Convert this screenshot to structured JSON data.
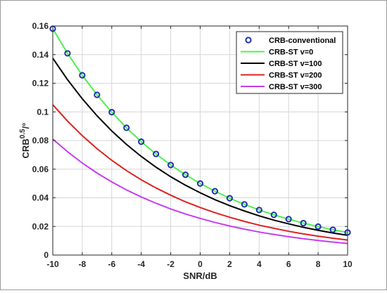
{
  "chart_data": {
    "type": "line",
    "xlabel": "SNR/dB",
    "ylabel_main": "CRB",
    "ylabel_sup": "0.5",
    "ylabel_unit": "/°",
    "xlim": [
      -10,
      10
    ],
    "ylim": [
      0,
      0.16
    ],
    "grid": true,
    "legend_position": "top-right",
    "x_ticks": [
      -10,
      -8,
      -6,
      -4,
      -2,
      0,
      2,
      4,
      6,
      8,
      10
    ],
    "y_ticks": [
      0,
      0.02,
      0.04,
      0.06,
      0.08,
      0.1,
      0.12,
      0.14,
      0.16
    ],
    "x": [
      -10,
      -9,
      -8,
      -7,
      -6,
      -5,
      -4,
      -3,
      -2,
      -1,
      0,
      1,
      2,
      3,
      4,
      5,
      6,
      7,
      8,
      9,
      10
    ],
    "series": [
      {
        "name": "CRB-conventional",
        "style": "markers",
        "color": "#1f2fb4",
        "values": [
          0.1581,
          0.1409,
          0.1256,
          0.1119,
          0.0998,
          0.0889,
          0.0792,
          0.0706,
          0.0629,
          0.0561,
          0.05,
          0.0446,
          0.0397,
          0.0354,
          0.0315,
          0.0281,
          0.0251,
          0.0223,
          0.0199,
          0.0177,
          0.0158
        ]
      },
      {
        "name": "CRB-ST v=0",
        "style": "line",
        "color": "#4cf24c",
        "values": [
          0.1581,
          0.1409,
          0.1256,
          0.1119,
          0.0998,
          0.0889,
          0.0792,
          0.0706,
          0.0629,
          0.0561,
          0.05,
          0.0446,
          0.0397,
          0.0354,
          0.0315,
          0.0281,
          0.0251,
          0.0223,
          0.0199,
          0.0177,
          0.0158
        ]
      },
      {
        "name": "CRB-ST v=100",
        "style": "line",
        "color": "#000000",
        "values": [
          0.1375,
          0.1225,
          0.1092,
          0.0973,
          0.0867,
          0.0773,
          0.0689,
          0.0614,
          0.0547,
          0.0488,
          0.0435,
          0.0387,
          0.0345,
          0.0308,
          0.0274,
          0.0244,
          0.0218,
          0.0194,
          0.0173,
          0.0154,
          0.0138
        ]
      },
      {
        "name": "CRB-ST v=200",
        "style": "line",
        "color": "#e02020",
        "values": [
          0.105,
          0.0936,
          0.0834,
          0.0743,
          0.0662,
          0.059,
          0.0526,
          0.0469,
          0.0418,
          0.0372,
          0.0332,
          0.0296,
          0.0264,
          0.0235,
          0.0209,
          0.0187,
          0.0166,
          0.0148,
          0.0132,
          0.0118,
          0.0105
        ]
      },
      {
        "name": "CRB-ST v=300",
        "style": "line",
        "color": "#c63cf0",
        "values": [
          0.081,
          0.0722,
          0.0643,
          0.0573,
          0.0511,
          0.0455,
          0.0406,
          0.0362,
          0.0322,
          0.0287,
          0.0256,
          0.0228,
          0.0203,
          0.0181,
          0.0161,
          0.0144,
          0.0128,
          0.0114,
          0.0102,
          0.0091,
          0.0081
        ]
      }
    ]
  }
}
